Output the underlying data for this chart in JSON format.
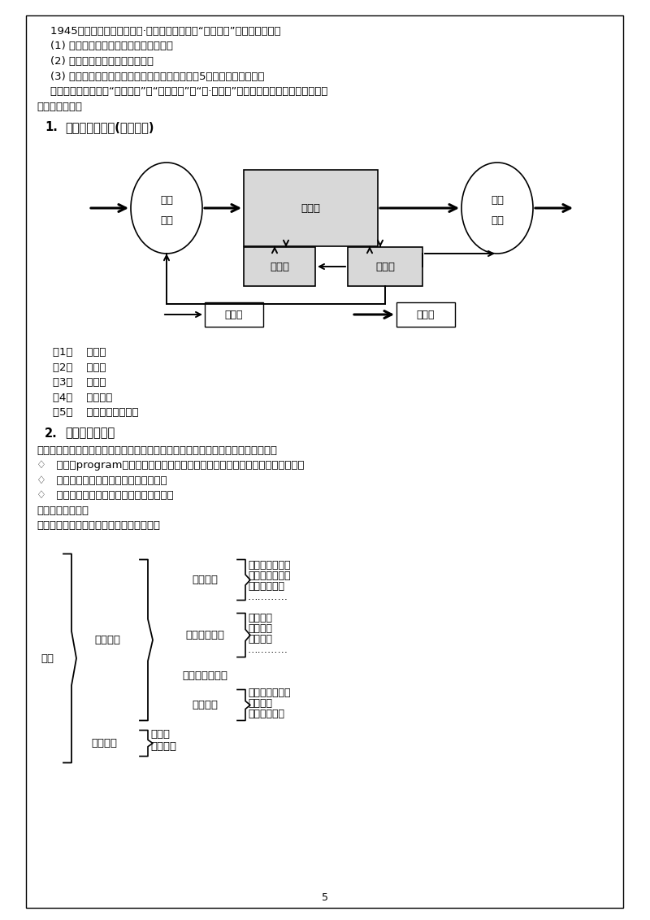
{
  "bg_color": "#ffffff",
  "text_lines": [
    "    1945年美籍匆牙利科学家冯·诺依曼提出了一个“存储程序”的计算机方案。",
    "    (1) 采用二进制数的形式表示数据和指令",
    "    (2) 将指令和数据存放在存储器中",
    "    (3) 由控制器、运算器、存储器、输入和输出设备5大部分组成计算机。",
    "    其工作原理的核心是“程序存储”和“程序控制”。“凯·诺依曼”型计算机系统由硬件和软件系统",
    "两大部分组成。"
  ],
  "sec1_title_num": "1.",
  "sec1_title_text": "计算机硬件系统(举例讲解)",
  "diag_labels": {
    "input": [
      "输入",
      "设备"
    ],
    "storage": "存储器",
    "output": [
      "输出",
      "设备"
    ],
    "alu": "运算器",
    "ctrl": "控制器",
    "ctrl_flow": "控制流",
    "data_flow": "数据流"
  },
  "list_items": [
    "（1）    运算器",
    "（2）    控制器",
    "（3）    存储器",
    "（4）    输入设备",
    "（5）    输出设备输出设备"
  ],
  "sec2_title_num": "2.",
  "sec2_title_text": "计算机软件系统",
  "sec2_body": [
    "软件是提高计算机使用效率、扩大计算机功能的各类程序、数据和有关文档的总称。",
    "♢   程序（program）是为了解决某一问题而设计的一系列指令或语句的有序集合。",
    "♢   数据是程序处理的对象和处理的结果；",
    "♢   文档是描述程序操作及使用的有关资料。",
    "计算机软件的分类",
    "计算机软件一般分为系统软件和应用软件。"
  ],
  "tree": {
    "root": "软件",
    "sys_label": "系统软件",
    "app_label": "应用软件",
    "os_label": "操作系统",
    "os_items": [
      "单用户操作系统",
      "多用户操作系统",
      "网络操作系统",
      "…………"
    ],
    "lang_label": "语言处理系统",
    "lang_items": [
      "汇编系统",
      "解释程序",
      "编译程序",
      "…………"
    ],
    "db_label": "数据库管理系统",
    "tool_label": "工具软件",
    "tool_items": [
      "诊断与维护程序",
      "调试程序",
      "装配连接程序"
    ],
    "app_items": [
      "软件包",
      "用户程序"
    ]
  },
  "page_num": "5"
}
